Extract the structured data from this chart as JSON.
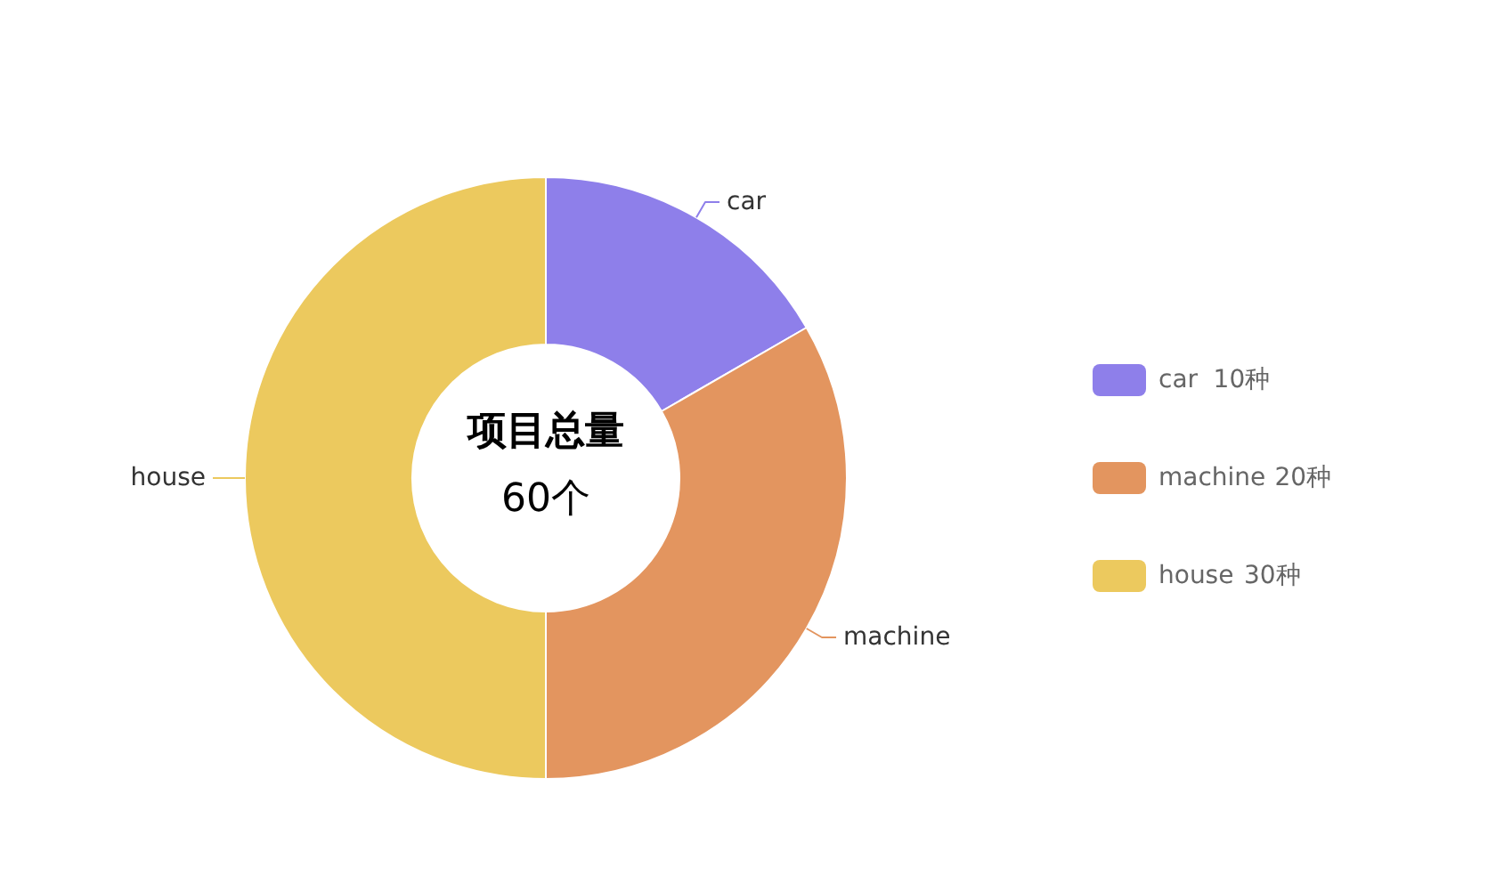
{
  "chart_data": {
    "type": "donut",
    "title": "项目总量",
    "subtitle": "60个",
    "categories": [
      "car",
      "machine",
      "house"
    ],
    "values": [
      10,
      20,
      30
    ],
    "value_labels": [
      "10种",
      "20种",
      "30种"
    ],
    "colors": [
      "#8e7fea",
      "#e3955f",
      "#ecc95e"
    ],
    "legend": "right"
  }
}
